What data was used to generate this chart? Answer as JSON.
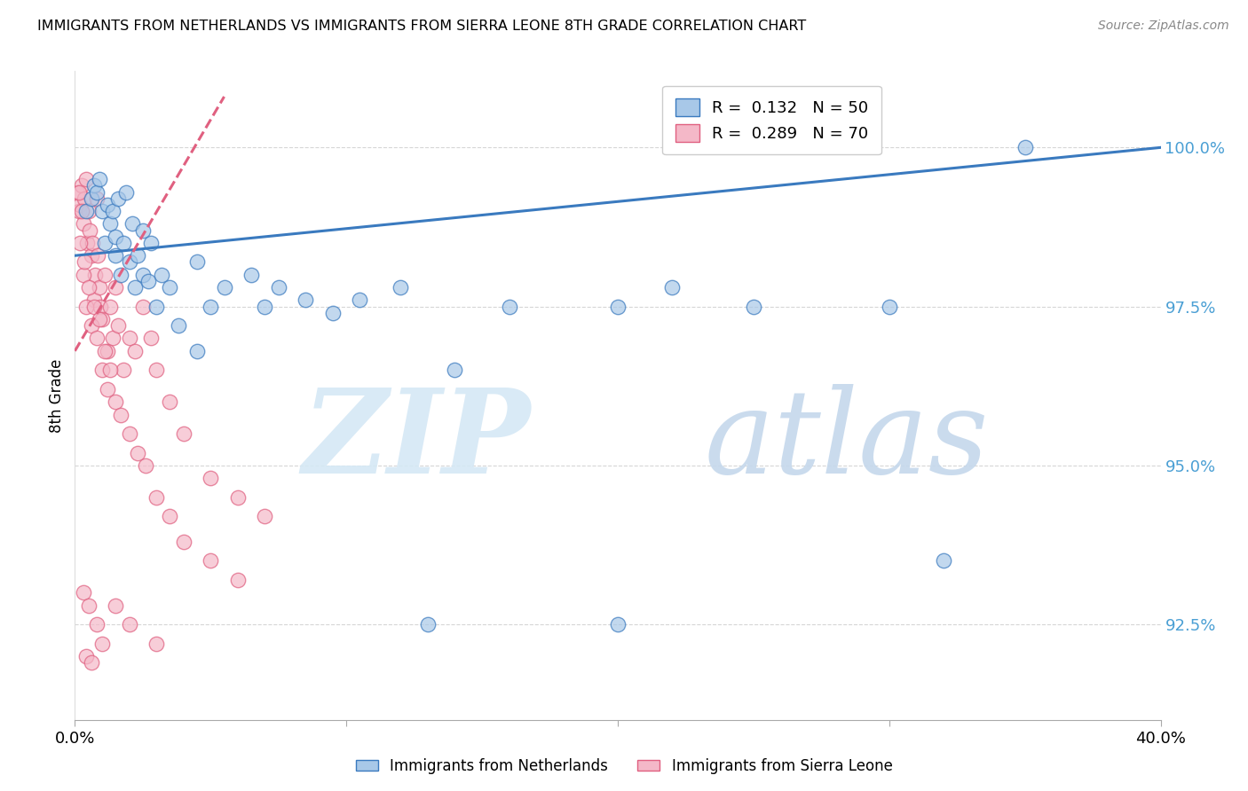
{
  "title": "IMMIGRANTS FROM NETHERLANDS VS IMMIGRANTS FROM SIERRA LEONE 8TH GRADE CORRELATION CHART",
  "source": "Source: ZipAtlas.com",
  "xlabel_netherlands": "Immigrants from Netherlands",
  "xlabel_sierraleone": "Immigrants from Sierra Leone",
  "ylabel": "8th Grade",
  "xlim": [
    0.0,
    40.0
  ],
  "ylim": [
    91.0,
    101.2
  ],
  "yticks": [
    92.5,
    95.0,
    97.5,
    100.0
  ],
  "xticks": [
    0.0,
    10.0,
    20.0,
    30.0,
    40.0
  ],
  "xtick_labels": [
    "0.0%",
    "",
    "",
    "",
    "40.0%"
  ],
  "ytick_labels": [
    "92.5%",
    "95.0%",
    "97.5%",
    "100.0%"
  ],
  "r_netherlands": 0.132,
  "n_netherlands": 50,
  "r_sierraleone": 0.289,
  "n_sierraleone": 70,
  "blue_color": "#a8c8e8",
  "pink_color": "#f4b8c8",
  "blue_line_color": "#3a7abf",
  "pink_line_color": "#e06080",
  "watermark_zip": "ZIP",
  "watermark_atlas": "atlas",
  "watermark_color_zip": "#c8dff0",
  "watermark_color_atlas": "#c8dff0",
  "nl_trend_x0": 0.0,
  "nl_trend_y0": 98.3,
  "nl_trend_x1": 40.0,
  "nl_trend_y1": 100.0,
  "sl_trend_x0": 0.0,
  "sl_trend_y0": 96.8,
  "sl_trend_x1": 10.0,
  "sl_trend_y1": 100.5,
  "netherlands_x": [
    0.4,
    0.6,
    0.7,
    0.8,
    0.9,
    1.0,
    1.1,
    1.2,
    1.3,
    1.4,
    1.5,
    1.6,
    1.7,
    1.8,
    1.9,
    2.0,
    2.1,
    2.2,
    2.3,
    2.5,
    2.7,
    2.8,
    3.0,
    3.2,
    3.5,
    4.5,
    5.0,
    5.5,
    6.5,
    7.0,
    7.5,
    8.5,
    9.5,
    10.5,
    12.0,
    14.0,
    16.0,
    20.0,
    22.0,
    25.0,
    35.0
  ],
  "netherlands_y": [
    99.0,
    99.2,
    99.4,
    99.3,
    99.5,
    99.0,
    98.5,
    99.1,
    98.8,
    99.0,
    98.6,
    99.2,
    98.0,
    98.5,
    99.3,
    98.2,
    98.8,
    97.8,
    98.3,
    98.0,
    97.9,
    98.5,
    97.5,
    98.0,
    97.8,
    98.2,
    97.5,
    97.8,
    98.0,
    97.5,
    97.8,
    97.6,
    97.4,
    97.6,
    97.8,
    96.5,
    97.5,
    97.5,
    97.8,
    97.5,
    100.0
  ],
  "netherlands_x2": [
    1.5,
    2.5,
    3.8,
    4.5,
    13.0,
    20.0,
    30.0,
    32.0
  ],
  "netherlands_y2": [
    98.3,
    98.7,
    97.2,
    96.8,
    92.5,
    92.5,
    97.5,
    93.5
  ],
  "sierraleone_x": [
    0.1,
    0.15,
    0.2,
    0.25,
    0.3,
    0.35,
    0.4,
    0.45,
    0.5,
    0.55,
    0.6,
    0.65,
    0.7,
    0.75,
    0.8,
    0.85,
    0.9,
    0.95,
    1.0,
    1.1,
    1.2,
    1.3,
    1.4,
    1.5,
    1.6,
    1.8,
    2.0,
    2.2,
    2.5,
    2.8,
    3.0,
    3.5,
    4.0,
    5.0,
    6.0,
    7.0,
    0.2,
    0.3,
    0.4,
    0.5,
    0.6,
    0.7,
    0.8,
    0.9,
    1.0,
    1.1,
    1.2,
    1.3,
    1.5,
    1.7,
    2.0,
    2.3,
    2.6,
    3.0,
    3.5,
    4.0,
    5.0,
    6.0,
    0.3,
    0.5,
    0.8,
    1.0,
    1.5,
    2.0,
    3.0,
    0.4,
    0.6,
    0.25,
    0.35,
    0.15
  ],
  "sierraleone_y": [
    99.3,
    99.0,
    99.1,
    99.4,
    98.8,
    99.2,
    99.5,
    98.5,
    99.0,
    98.7,
    98.3,
    98.5,
    97.6,
    98.0,
    99.2,
    98.3,
    97.8,
    97.5,
    97.3,
    98.0,
    96.8,
    97.5,
    97.0,
    97.8,
    97.2,
    96.5,
    97.0,
    96.8,
    97.5,
    97.0,
    96.5,
    96.0,
    95.5,
    94.8,
    94.5,
    94.2,
    98.5,
    98.0,
    97.5,
    97.8,
    97.2,
    97.5,
    97.0,
    97.3,
    96.5,
    96.8,
    96.2,
    96.5,
    96.0,
    95.8,
    95.5,
    95.2,
    95.0,
    94.5,
    94.2,
    93.8,
    93.5,
    93.2,
    93.0,
    92.8,
    92.5,
    92.2,
    92.8,
    92.5,
    92.2,
    92.0,
    91.9,
    99.0,
    98.2,
    99.3
  ]
}
